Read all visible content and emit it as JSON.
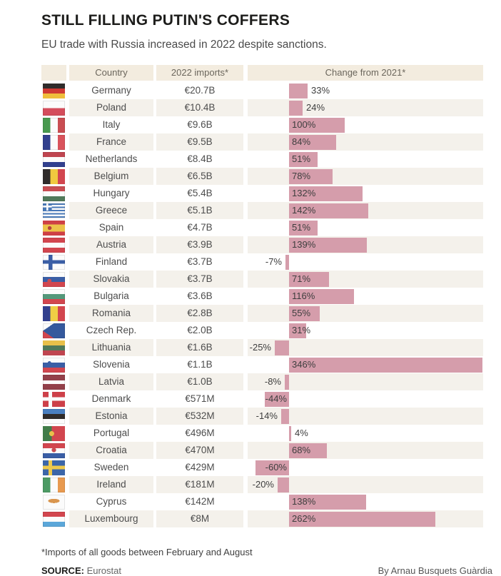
{
  "header": {
    "title": "STILL FILLING PUTIN'S COFFERS",
    "subtitle": "EU trade with Russia increased in 2022 despite sanctions."
  },
  "table": {
    "col_country": "Country",
    "col_imports": "2022 imports*",
    "col_change": "Change from 2021*"
  },
  "chart_data": {
    "type": "bar",
    "orientation": "horizontal",
    "title": "STILL FILLING PUTIN'S COFFERS",
    "value_unit": "percent change from 2021",
    "xlim": [
      -75,
      360
    ],
    "rows": [
      {
        "country": "Germany",
        "flag": "de",
        "imports": "€20.7B",
        "change_pct": 33,
        "change_label": "33%",
        "label_pos": "outside-right"
      },
      {
        "country": "Poland",
        "flag": "pl",
        "imports": "€10.4B",
        "change_pct": 24,
        "change_label": "24%",
        "label_pos": "outside-right"
      },
      {
        "country": "Italy",
        "flag": "it",
        "imports": "€9.6B",
        "change_pct": 100,
        "change_label": "100%",
        "label_pos": "inside-left"
      },
      {
        "country": "France",
        "flag": "fr",
        "imports": "€9.5B",
        "change_pct": 84,
        "change_label": "84%",
        "label_pos": "inside-left"
      },
      {
        "country": "Netherlands",
        "flag": "nl",
        "imports": "€8.4B",
        "change_pct": 51,
        "change_label": "51%",
        "label_pos": "inside-left"
      },
      {
        "country": "Belgium",
        "flag": "be",
        "imports": "€6.5B",
        "change_pct": 78,
        "change_label": "78%",
        "label_pos": "inside-left"
      },
      {
        "country": "Hungary",
        "flag": "hu",
        "imports": "€5.4B",
        "change_pct": 132,
        "change_label": "132%",
        "label_pos": "inside-left"
      },
      {
        "country": "Greece",
        "flag": "gr",
        "imports": "€5.1B",
        "change_pct": 142,
        "change_label": "142%",
        "label_pos": "inside-left"
      },
      {
        "country": "Spain",
        "flag": "es",
        "imports": "€4.7B",
        "change_pct": 51,
        "change_label": "51%",
        "label_pos": "inside-left"
      },
      {
        "country": "Austria",
        "flag": "at",
        "imports": "€3.9B",
        "change_pct": 139,
        "change_label": "139%",
        "label_pos": "inside-left"
      },
      {
        "country": "Finland",
        "flag": "fi",
        "imports": "€3.7B",
        "change_pct": -7,
        "change_label": "-7%",
        "label_pos": "outside-left"
      },
      {
        "country": "Slovakia",
        "flag": "sk",
        "imports": "€3.7B",
        "change_pct": 71,
        "change_label": "71%",
        "label_pos": "inside-left"
      },
      {
        "country": "Bulgaria",
        "flag": "bg",
        "imports": "€3.6B",
        "change_pct": 116,
        "change_label": "116%",
        "label_pos": "inside-left"
      },
      {
        "country": "Romania",
        "flag": "ro",
        "imports": "€2.8B",
        "change_pct": 55,
        "change_label": "55%",
        "label_pos": "inside-left"
      },
      {
        "country": "Czech Rep.",
        "flag": "cz",
        "imports": "€2.0B",
        "change_pct": 31,
        "change_label": "31%",
        "label_pos": "inside-left"
      },
      {
        "country": "Lithuania",
        "flag": "lt",
        "imports": "€1.6B",
        "change_pct": -25,
        "change_label": "-25%",
        "label_pos": "outside-left"
      },
      {
        "country": "Slovenia",
        "flag": "si",
        "imports": "€1.1B",
        "change_pct": 346,
        "change_label": "346%",
        "label_pos": "inside-left"
      },
      {
        "country": "Latvia",
        "flag": "lv",
        "imports": "€1.0B",
        "change_pct": -8,
        "change_label": "-8%",
        "label_pos": "outside-left"
      },
      {
        "country": "Denmark",
        "flag": "dk",
        "imports": "€571M",
        "change_pct": -44,
        "change_label": "-44%",
        "label_pos": "inside-right"
      },
      {
        "country": "Estonia",
        "flag": "ee",
        "imports": "€532M",
        "change_pct": -14,
        "change_label": "-14%",
        "label_pos": "outside-left"
      },
      {
        "country": "Portugal",
        "flag": "pt",
        "imports": "€496M",
        "change_pct": 4,
        "change_label": "4%",
        "label_pos": "outside-right"
      },
      {
        "country": "Croatia",
        "flag": "hr",
        "imports": "€470M",
        "change_pct": 68,
        "change_label": "68%",
        "label_pos": "inside-left"
      },
      {
        "country": "Sweden",
        "flag": "se",
        "imports": "€429M",
        "change_pct": -60,
        "change_label": "-60%",
        "label_pos": "inside-right"
      },
      {
        "country": "Ireland",
        "flag": "ie",
        "imports": "€181M",
        "change_pct": -20,
        "change_label": "-20%",
        "label_pos": "outside-left"
      },
      {
        "country": "Cyprus",
        "flag": "cy",
        "imports": "€142M",
        "change_pct": 138,
        "change_label": "138%",
        "label_pos": "inside-left"
      },
      {
        "country": "Luxembourg",
        "flag": "lu",
        "imports": "€8M",
        "change_pct": 262,
        "change_label": "262%",
        "label_pos": "inside-left"
      }
    ]
  },
  "footer": {
    "footnote": "*Imports of all goods between February and August",
    "source_label": "SOURCE:",
    "source_value": "Eurostat",
    "byline": "By Arnau Busquets Guàrdia"
  },
  "colors": {
    "bar": "#d59dab",
    "row_stripe": "#f4f1eb",
    "header_bg": "#f3ecdf"
  }
}
